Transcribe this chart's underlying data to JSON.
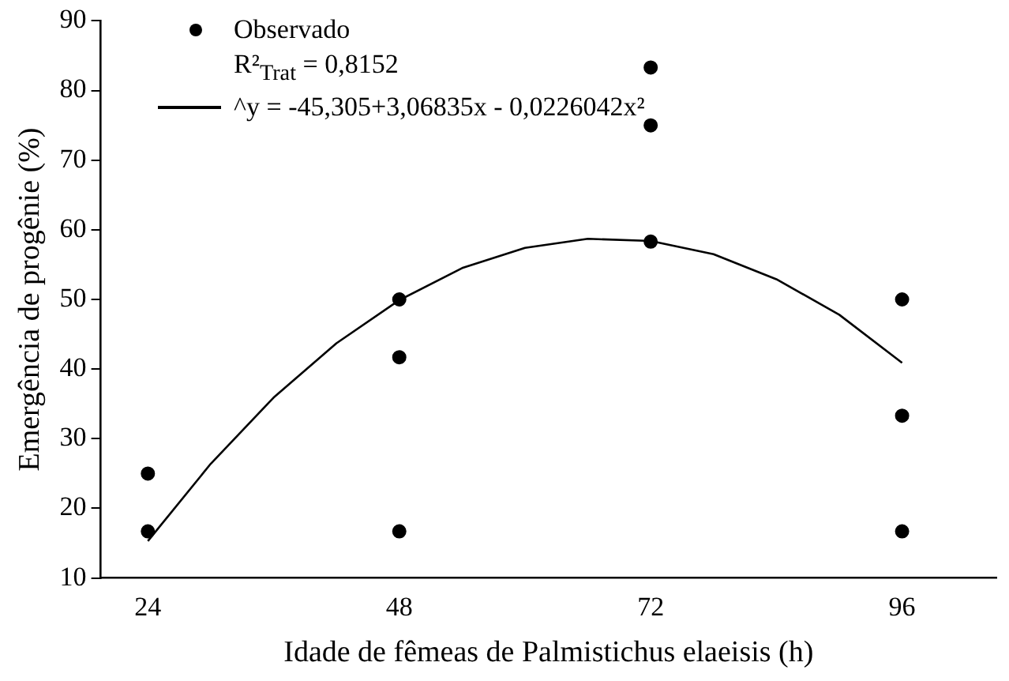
{
  "chart_data": {
    "type": "scatter",
    "xlabel": "Idade de fêmeas de Palmistichus elaeisis (h)",
    "ylabel": "Emergência de progênie (%)",
    "x": [
      24,
      24,
      48,
      48,
      48,
      72,
      72,
      72,
      96,
      96,
      96
    ],
    "series": [
      {
        "name": "Observado",
        "color": "#000000",
        "marker": "circle",
        "values": [
          25,
          16.7,
          50,
          41.7,
          16.7,
          83.3,
          75,
          58.3,
          50,
          33.3,
          16.7
        ]
      },
      {
        "name": "^y = -45,305+3,06835x - 0,0226042x²",
        "color": "#000000",
        "type": "line",
        "marker": "none",
        "x": [
          24,
          30,
          36,
          42,
          48,
          54,
          60,
          66,
          72,
          78,
          84,
          90,
          96
        ],
        "values": [
          15.3,
          26.4,
          35.9,
          43.7,
          49.9,
          54.5,
          57.4,
          58.7,
          58.4,
          56.5,
          52.9,
          47.8,
          40.9
        ]
      }
    ],
    "annotations": [
      "R²$_{Trat}$ = 0,8152"
    ],
    "xlim": [
      19.5,
      105
    ],
    "xticks": [
      24,
      48,
      72,
      96
    ],
    "ylim": [
      10,
      90
    ],
    "yticks": [
      10,
      20,
      30,
      40,
      50,
      60,
      70,
      80,
      90
    ],
    "grid": false,
    "legend": "top left"
  }
}
